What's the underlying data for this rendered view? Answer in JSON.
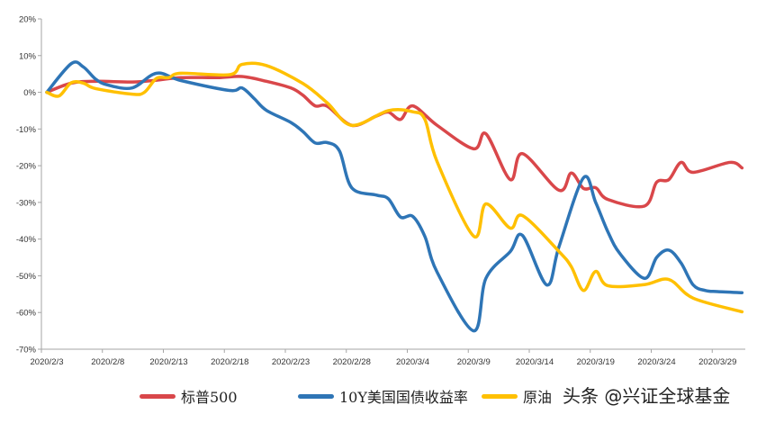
{
  "chart_data": {
    "type": "line",
    "title": "",
    "xlabel": "",
    "ylabel": "",
    "ylim": [
      -70,
      20
    ],
    "yticks": [
      "20%",
      "10%",
      "0%",
      "-10%",
      "-20%",
      "-30%",
      "-40%",
      "-50%",
      "-60%",
      "-70%"
    ],
    "yticks_values": [
      20,
      10,
      0,
      -10,
      -20,
      -30,
      -40,
      -50,
      -60,
      -70
    ],
    "xticks": [
      "2020/2/3",
      "2020/2/8",
      "2020/2/13",
      "2020/2/18",
      "2020/2/23",
      "2020/2/28",
      "2020/3/4",
      "2020/3/9",
      "2020/3/14",
      "2020/3/19",
      "2020/3/24",
      "2020/3/29"
    ],
    "x_start": "2020/2/3",
    "x_end": "2020/3/31",
    "grid": false,
    "legend_position": "bottom",
    "series": [
      {
        "name": "标普500",
        "color": "#d9474a",
        "x": [
          "2020/2/3",
          "2020/2/5",
          "2020/2/7",
          "2020/2/10",
          "2020/2/12",
          "2020/2/14",
          "2020/2/17",
          "2020/2/19",
          "2020/2/21",
          "2020/2/23",
          "2020/2/24",
          "2020/2/25",
          "2020/2/26",
          "2020/2/28",
          "2020/3/1",
          "2020/3/2",
          "2020/3/3",
          "2020/3/4",
          "2020/3/6",
          "2020/3/9",
          "2020/3/10",
          "2020/3/12",
          "2020/3/13",
          "2020/3/16",
          "2020/3/17",
          "2020/3/18",
          "2020/3/19",
          "2020/3/20",
          "2020/3/23",
          "2020/3/24",
          "2020/3/25",
          "2020/3/26",
          "2020/3/27",
          "2020/3/30",
          "2020/3/31"
        ],
        "values": [
          0,
          2.5,
          3,
          2.8,
          3.3,
          4,
          4,
          4.3,
          3,
          1.2,
          -0.8,
          -3.7,
          -3.8,
          -9,
          -6.5,
          -5.4,
          -7.4,
          -3.7,
          -9,
          -15.4,
          -11.3,
          -23.8,
          -16.7,
          -26.7,
          -22,
          -26.2,
          -26,
          -29.2,
          -31,
          -24.5,
          -23.8,
          -19.1,
          -21.8,
          -19.1,
          -20.6
        ]
      },
      {
        "name": "10Y美国国债收益率",
        "color": "#2e75b6",
        "x": [
          "2020/2/3",
          "2020/2/5",
          "2020/2/6",
          "2020/2/7",
          "2020/2/8",
          "2020/2/10",
          "2020/2/12",
          "2020/2/14",
          "2020/2/18",
          "2020/2/19",
          "2020/2/20",
          "2020/2/21",
          "2020/2/23",
          "2020/2/24",
          "2020/2/25",
          "2020/2/26",
          "2020/2/27",
          "2020/2/28",
          "2020/3/1",
          "2020/3/2",
          "2020/3/3",
          "2020/3/4",
          "2020/3/5",
          "2020/3/6",
          "2020/3/9",
          "2020/3/10",
          "2020/3/12",
          "2020/3/13",
          "2020/3/15",
          "2020/3/16",
          "2020/3/18",
          "2020/3/19",
          "2020/3/20",
          "2020/3/21",
          "2020/3/23",
          "2020/3/24",
          "2020/3/25",
          "2020/3/26",
          "2020/3/27",
          "2020/3/28",
          "2020/3/29",
          "2020/3/31"
        ],
        "values": [
          0,
          7.8,
          6.9,
          3.6,
          2,
          1.2,
          5.2,
          3.2,
          0.5,
          1.2,
          -1.7,
          -4.9,
          -8.2,
          -10.7,
          -13.8,
          -13.7,
          -16,
          -26,
          -28,
          -29,
          -34,
          -33.8,
          -39.3,
          -49,
          -65,
          -50.7,
          -43.4,
          -39,
          -52.5,
          -42,
          -23.3,
          -30,
          -38,
          -44,
          -50.7,
          -45,
          -43,
          -46.5,
          -52.5,
          -54,
          -54.3,
          -54.6
        ]
      },
      {
        "name": "原油",
        "color": "#ffc000",
        "x": [
          "2020/2/3",
          "2020/2/4",
          "2020/2/5",
          "2020/2/6",
          "2020/2/7",
          "2020/2/10",
          "2020/2/11",
          "2020/2/12",
          "2020/2/13",
          "2020/2/14",
          "2020/2/18",
          "2020/2/19",
          "2020/2/21",
          "2020/2/24",
          "2020/2/26",
          "2020/2/28",
          "2020/3/2",
          "2020/3/4",
          "2020/3/5",
          "2020/3/6",
          "2020/3/9",
          "2020/3/10",
          "2020/3/12",
          "2020/3/13",
          "2020/3/16",
          "2020/3/17",
          "2020/3/18",
          "2020/3/19",
          "2020/3/20",
          "2020/3/23",
          "2020/3/25",
          "2020/3/27",
          "2020/3/31"
        ],
        "values": [
          0,
          -1,
          2.6,
          2.5,
          1,
          -0.5,
          0,
          3.8,
          4,
          5.2,
          4.8,
          7.6,
          7.3,
          2.4,
          -2.9,
          -9,
          -5,
          -5.3,
          -7.4,
          -18.9,
          -39.2,
          -30.4,
          -37,
          -33.6,
          -43.4,
          -47.5,
          -54,
          -48.8,
          -52.7,
          -52.4,
          -51,
          -56.1,
          -59.8
        ]
      }
    ]
  },
  "watermark": "头条 @兴证全球基金"
}
